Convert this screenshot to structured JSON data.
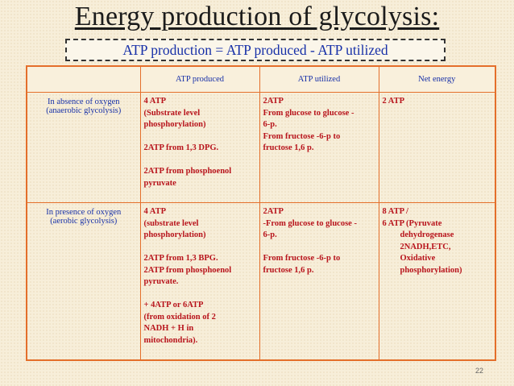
{
  "title": "Energy production of glycolysis:",
  "formula": "ATP production = ATP produced - ATP utilized",
  "table": {
    "headers": [
      "",
      "ATP produced",
      "ATP utilized",
      "Net energy"
    ],
    "rows": [
      {
        "label_line1": "In absence of oxygen",
        "label_line2": "(anaerobic glycolysis)",
        "produced": "4 ATP\n(Substrate level\nphosphorylation)\n\n2ATP from 1,3 DPG.\n\n2ATP from phosphoenol\npyruvate",
        "utilized": "2ATP\nFrom glucose to glucose -\n6-p.\nFrom fructose -6-p to\nfructose 1,6 p.",
        "net": "2 ATP"
      },
      {
        "label_line1": "In presence of oxygen",
        "label_line2": "(aerobic glycolysis)",
        "produced": "4 ATP\n(substrate level\nphosphorylation)\n\n2ATP from 1,3 BPG.\n2ATP from phosphoenol\npyruvate.\n\n+ 4ATP or 6ATP\n(from oxidation of 2\nNADH + H in\nmitochondria).",
        "utilized": "2ATP\n-From glucose to glucose -\n6-p.\n\nFrom fructose -6-p to\nfructose 1,6 p.",
        "net_line1": "8 ATP /",
        "net_line2": "6 ATP  (Pyruvate",
        "net_rest": "dehydrogenase\n2NADH,ETC,\nOxidative\nphosphorylation)"
      }
    ]
  },
  "page_number": "22"
}
